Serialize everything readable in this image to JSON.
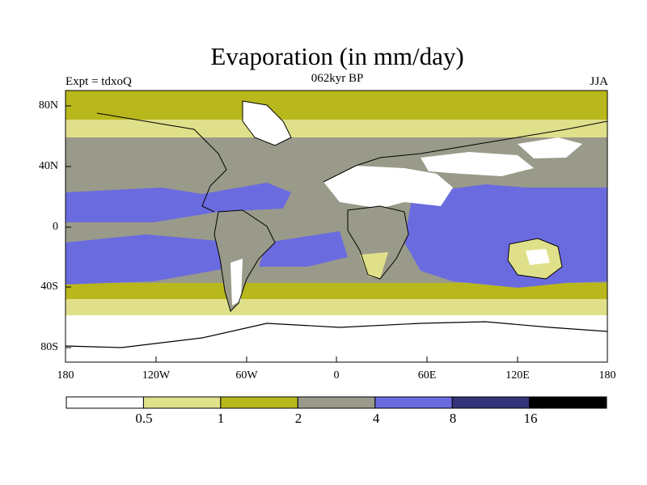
{
  "title": "Evaporation (in mm/day)",
  "subtitle": "062kyr BP",
  "left_label": "Expt = tdxoQ",
  "right_label": "JJA",
  "lat_ticks": [
    "80N",
    "40N",
    "0",
    "40S",
    "80S"
  ],
  "lon_ticks": [
    "180",
    "120W",
    "60W",
    "0",
    "60E",
    "120E",
    "180"
  ],
  "colorbar": {
    "colors": [
      "#ffffff",
      "#e0e08a",
      "#b8b81c",
      "#9a9a8a",
      "#6b6be0",
      "#34347a",
      "#000000"
    ],
    "labels": [
      "0.5",
      "1",
      "2",
      "4",
      "8",
      "16"
    ]
  }
}
